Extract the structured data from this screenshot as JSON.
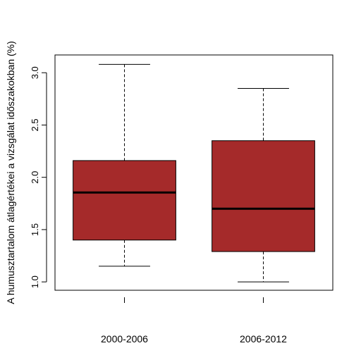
{
  "chart_data": {
    "type": "boxplot",
    "title": "",
    "xlabel": "",
    "ylabel": "A humusztartalom átlagértékei a vizsgálat időszakokban (%)",
    "categories": [
      "2000-2006",
      "2006-2012"
    ],
    "boxes": [
      {
        "category": "2000-2006",
        "whisker_low": 1.15,
        "q1": 1.4,
        "median": 1.855,
        "q3": 2.16,
        "whisker_high": 3.08
      },
      {
        "category": "2006-2012",
        "whisker_low": 1.0,
        "q1": 1.29,
        "median": 1.7,
        "q3": 2.35,
        "whisker_high": 2.85
      }
    ],
    "ylim": [
      0.92,
      3.17
    ],
    "yticks": [
      1.0,
      1.5,
      2.0,
      2.5,
      3.0
    ],
    "ytick_labels": [
      "1.0",
      "1.5",
      "2.0",
      "2.5",
      "3.0"
    ],
    "grid": false,
    "colors": {
      "box_fill": "#A52A2A",
      "lines": "#000000"
    }
  }
}
